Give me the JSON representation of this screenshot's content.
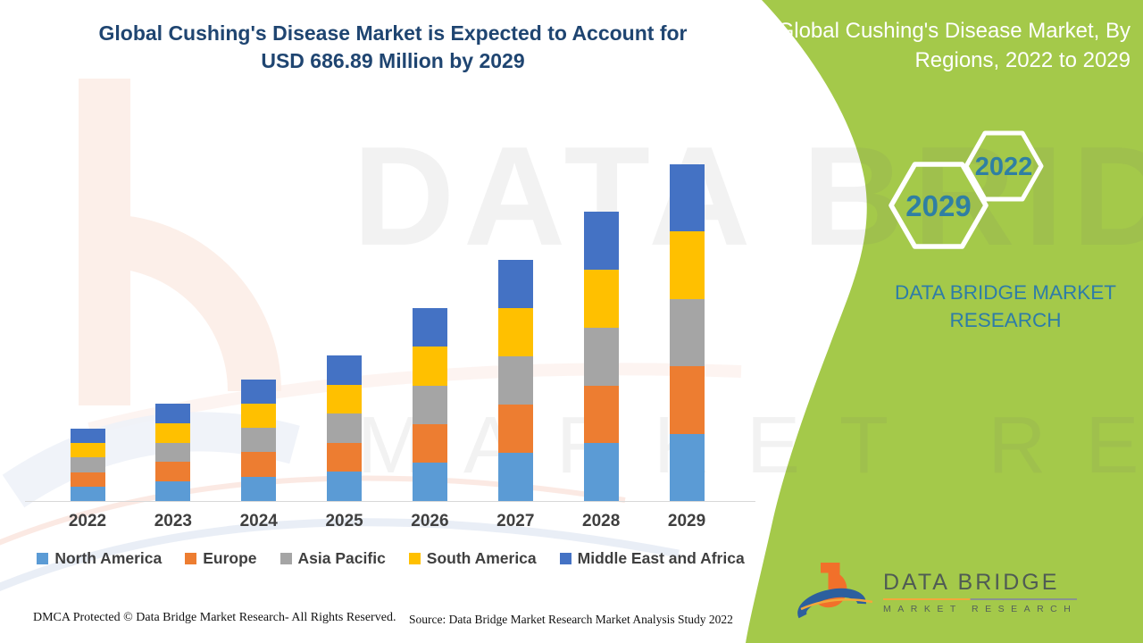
{
  "header": {
    "title_line1": "Global Cushing's Disease Market is Expected to Account for",
    "title_line2": "USD 686.89 Million by 2029"
  },
  "side_panel": {
    "title": "Global Cushing's Disease Market, By Regions, 2022 to 2029",
    "hexagons": {
      "small": "2022",
      "large": "2029"
    },
    "brand": "DATA BRIDGE MARKET RESEARCH",
    "background_color": "#A4C94A",
    "brand_text_color": "#2E7CA8",
    "hexagon_text_color": "#2F7FA3"
  },
  "watermark": {
    "line1": "DATA BRIDGE",
    "line2": "MARKET RESEARCH"
  },
  "chart_data": {
    "type": "bar",
    "stacked": true,
    "title": "Global Cushing's Disease Market is Expected to Account for USD 686.89 Million by 2029",
    "xlabel": "",
    "ylabel": "",
    "value_unit": "USD Million",
    "y_axis_visible": false,
    "grid": false,
    "legend_position": "bottom",
    "categories": [
      "2022",
      "2023",
      "2024",
      "2025",
      "2026",
      "2027",
      "2028",
      "2029"
    ],
    "series": [
      {
        "name": "North America",
        "color": "#5B9BD5",
        "values": [
          29.5,
          39.7,
          49.7,
          59.4,
          78.6,
          98.4,
          117.9,
          137.378
        ]
      },
      {
        "name": "Europe",
        "color": "#ED7D31",
        "values": [
          29.5,
          39.7,
          49.7,
          59.4,
          78.6,
          98.4,
          117.9,
          137.378
        ]
      },
      {
        "name": "Asia Pacific",
        "color": "#A5A5A5",
        "values": [
          29.5,
          39.7,
          49.7,
          59.4,
          78.6,
          98.4,
          117.9,
          137.378
        ]
      },
      {
        "name": "South America",
        "color": "#FFC000",
        "values": [
          29.5,
          39.7,
          49.7,
          59.4,
          78.6,
          98.4,
          117.9,
          137.378
        ]
      },
      {
        "name": "Middle East and Africa",
        "color": "#4472C4",
        "values": [
          29.5,
          39.7,
          49.7,
          59.4,
          78.6,
          98.4,
          117.9,
          137.378
        ]
      }
    ],
    "totals_usd_million": [
      147.5,
      198.5,
      248.5,
      297.0,
      393.0,
      492.0,
      589.5,
      686.89
    ],
    "ylim": [
      0,
      700
    ]
  },
  "legend_note": "legend rendered from chart_data.series",
  "footer": {
    "left": "DMCA Protected © Data Bridge Market Research- All Rights Reserved.",
    "source": "Source: Data Bridge Market Research Market Analysis Study 2022"
  },
  "logo": {
    "line1": "DATA BRIDGE",
    "line2": "MARKET RESEARCH"
  }
}
